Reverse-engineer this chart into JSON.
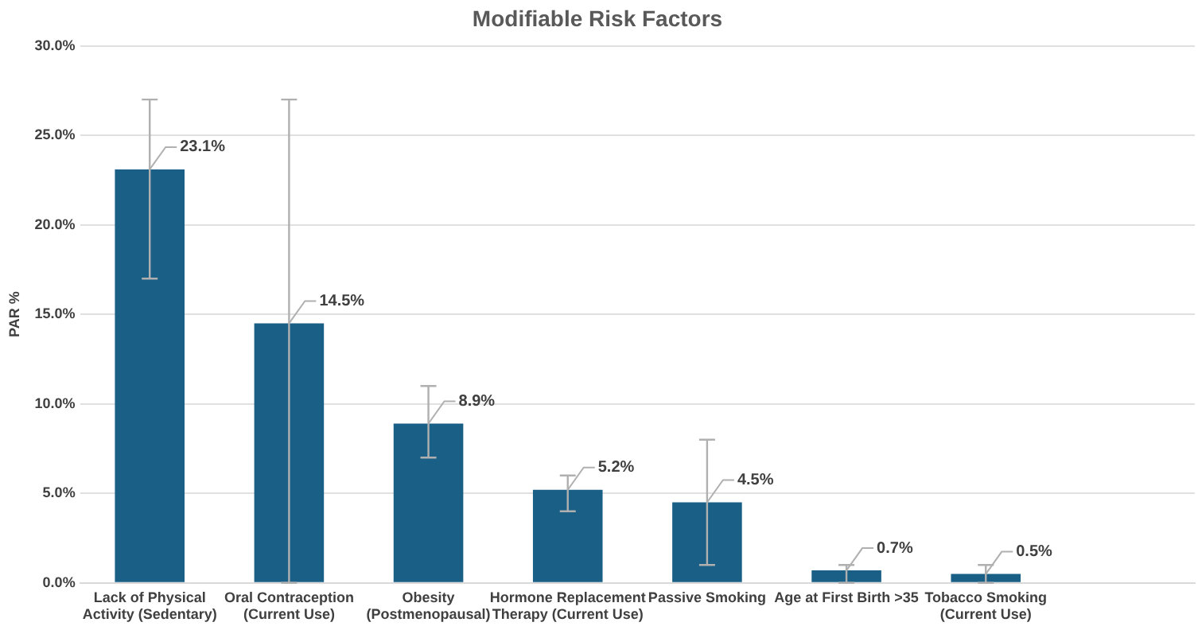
{
  "chart_data": {
    "type": "bar",
    "title": "Modifiable Risk Factors",
    "ylabel": "PAR %",
    "categories": [
      [
        "Lack of Physical",
        "Activity (Sedentary)"
      ],
      [
        "Oral Contraception",
        "(Current Use)"
      ],
      [
        "Obesity",
        "(Postmenopausal)"
      ],
      [
        "Hormone Replacement",
        "Therapy (Current Use)"
      ],
      [
        "Passive Smoking"
      ],
      [
        "Age at First Birth >35"
      ],
      [
        "Tobacco Smoking",
        "(Current Use)"
      ],
      null
    ],
    "values": [
      23.1,
      14.5,
      8.9,
      5.2,
      4.5,
      0.7,
      0.5,
      null
    ],
    "errors": [
      [
        17,
        27
      ],
      [
        0,
        27
      ],
      [
        7,
        11
      ],
      [
        4,
        6
      ],
      [
        1,
        8
      ],
      [
        0,
        1
      ],
      [
        0,
        1
      ],
      null
    ],
    "value_labels": [
      "23.1%",
      "14.5%",
      "8.9%",
      "5.2%",
      "4.5%",
      "0.7%",
      "0.5%",
      null
    ],
    "color": "#1a5f86",
    "ylim": [
      0,
      30
    ],
    "yticks": [
      {
        "value": 0,
        "label": "0.0%"
      },
      {
        "value": 5,
        "label": "5.0%"
      },
      {
        "value": 10,
        "label": "10.0%"
      },
      {
        "value": 15,
        "label": "15.0%"
      },
      {
        "value": 20,
        "label": "20.0%"
      },
      {
        "value": 25,
        "label": "25.0%"
      },
      {
        "value": 30,
        "label": "30.0%"
      }
    ],
    "grid": "y"
  }
}
